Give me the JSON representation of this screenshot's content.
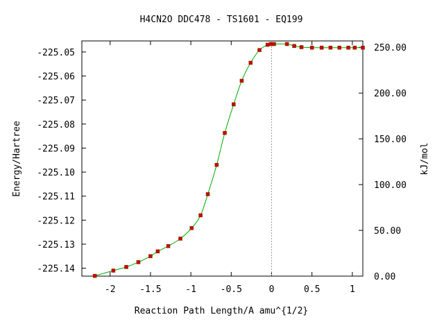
{
  "chart_data": {
    "type": "line",
    "title": "H4CN2O   DDC478 - TS1601 - EQ199",
    "xlabel": "Reaction Path Length/A amu^{1/2}",
    "ylabel": "Energy/Hartree",
    "y2label": "kJ/mol",
    "xlim": [
      -2.35,
      1.13
    ],
    "ylim": [
      -225.1433,
      -225.0454
    ],
    "y2lim": [
      0,
      257
    ],
    "x_ticks": [
      {
        "v": -2,
        "label": "-2"
      },
      {
        "v": -1.5,
        "label": "-1.5"
      },
      {
        "v": -1,
        "label": "-1"
      },
      {
        "v": -0.5,
        "label": "-0.5"
      },
      {
        "v": 0,
        "label": "0"
      },
      {
        "v": 0.5,
        "label": "0.5"
      },
      {
        "v": 1,
        "label": "1"
      }
    ],
    "y_ticks": [
      {
        "v": -225.05,
        "label": "-225.05"
      },
      {
        "v": -225.06,
        "label": "-225.06"
      },
      {
        "v": -225.07,
        "label": "-225.07"
      },
      {
        "v": -225.08,
        "label": "-225.08"
      },
      {
        "v": -225.09,
        "label": "-225.09"
      },
      {
        "v": -225.1,
        "label": "-225.10"
      },
      {
        "v": -225.11,
        "label": "-225.11"
      },
      {
        "v": -225.12,
        "label": "-225.12"
      },
      {
        "v": -225.13,
        "label": "-225.13"
      },
      {
        "v": -225.14,
        "label": "-225.14"
      }
    ],
    "y2_ticks": [
      {
        "v": 0,
        "label": "0.00"
      },
      {
        "v": 50,
        "label": "50.00"
      },
      {
        "v": 100,
        "label": "100.00"
      },
      {
        "v": 150,
        "label": "150.00"
      },
      {
        "v": 200,
        "label": "200.00"
      },
      {
        "v": 250,
        "label": "250.00"
      }
    ],
    "ts_marker_x": 0,
    "grid": false,
    "line_color": "#00aa00",
    "marker_color": "#cc0000",
    "series": [
      {
        "values": [
          {
            "x": -2.19,
            "y": -225.1432
          },
          {
            "x": -1.96,
            "y": -225.141
          },
          {
            "x": -1.8,
            "y": -225.1395
          },
          {
            "x": -1.65,
            "y": -225.1375
          },
          {
            "x": -1.5,
            "y": -225.135
          },
          {
            "x": -1.41,
            "y": -225.133
          },
          {
            "x": -1.28,
            "y": -225.1308
          },
          {
            "x": -1.13,
            "y": -225.1277
          },
          {
            "x": -0.99,
            "y": -225.1233
          },
          {
            "x": -0.88,
            "y": -225.118
          },
          {
            "x": -0.79,
            "y": -225.1092
          },
          {
            "x": -0.68,
            "y": -225.097
          },
          {
            "x": -0.58,
            "y": -225.0837
          },
          {
            "x": -0.47,
            "y": -225.0718
          },
          {
            "x": -0.37,
            "y": -225.062
          },
          {
            "x": -0.26,
            "y": -225.0545
          },
          {
            "x": -0.15,
            "y": -225.0492
          },
          {
            "x": -0.05,
            "y": -225.047
          },
          {
            "x": -0.01,
            "y": -225.0467
          },
          {
            "x": 0.03,
            "y": -225.0467
          },
          {
            "x": 0.19,
            "y": -225.0467
          },
          {
            "x": 0.28,
            "y": -225.0475
          },
          {
            "x": 0.37,
            "y": -225.048
          },
          {
            "x": 0.5,
            "y": -225.0482
          },
          {
            "x": 0.62,
            "y": -225.0482
          },
          {
            "x": 0.73,
            "y": -225.0482
          },
          {
            "x": 0.84,
            "y": -225.0482
          },
          {
            "x": 0.95,
            "y": -225.0482
          },
          {
            "x": 1.03,
            "y": -225.0482
          },
          {
            "x": 1.13,
            "y": -225.0482
          }
        ]
      }
    ]
  }
}
